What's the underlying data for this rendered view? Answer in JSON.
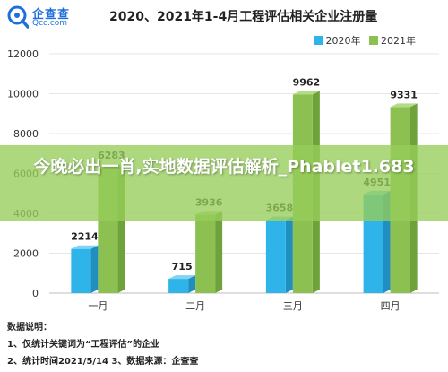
{
  "header": {
    "logo_text": "企查查",
    "logo_sub": "Qcc.com",
    "title": "2020、2021年1-4月工程评估相关企业注册量"
  },
  "legend": [
    {
      "label": "2020年",
      "color": "#2fb4ea"
    },
    {
      "label": "2021年",
      "color": "#8cc152"
    }
  ],
  "chart_data": {
    "type": "bar",
    "categories": [
      "一月",
      "二月",
      "三月",
      "四月"
    ],
    "series": [
      {
        "name": "2020年",
        "values": [
          2214,
          715,
          3658,
          4951
        ],
        "color": "#2fb4ea"
      },
      {
        "name": "2021年",
        "values": [
          6283,
          3936,
          9962,
          9331
        ],
        "color": "#8cc152"
      }
    ],
    "title": "2020、2021年1-4月工程评估相关企业注册量",
    "ylim": [
      0,
      12000
    ],
    "yticks": [
      "0",
      "2000",
      "4000",
      "6000",
      "8000",
      "10000",
      "12000"
    ],
    "labels": {
      "2020年": [
        "2214",
        "715",
        "3658",
        "4951"
      ],
      "2021年": [
        "6283",
        "3936",
        "9962",
        "9331"
      ]
    },
    "grid": true,
    "legend_position": "top-right"
  },
  "notes": {
    "heading": "数据说明：",
    "line1": "1、仅统计关键词为“工程评估”的企业",
    "line2": "2、统计时间2021/5/14   3、数据来源：企查查"
  },
  "overlay": {
    "text": "今晚必出一肖,实地数据评估解析_Phablet1.683"
  }
}
